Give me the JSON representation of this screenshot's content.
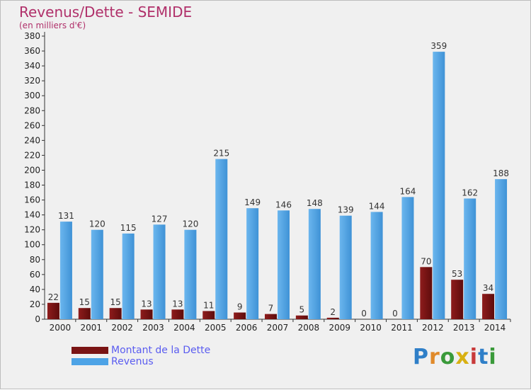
{
  "chart_data": {
    "type": "bar",
    "title": "Revenus/Dette - SEMIDE",
    "subtitle": "(en milliers d'€)",
    "categories": [
      "2000",
      "2001",
      "2002",
      "2003",
      "2004",
      "2005",
      "2006",
      "2007",
      "2008",
      "2009",
      "2010",
      "2011",
      "2012",
      "2013",
      "2014"
    ],
    "series": [
      {
        "name": "Montant de la Dette",
        "color": "#7a1414",
        "values": [
          22,
          15,
          15,
          13,
          13,
          11,
          9,
          7,
          5,
          2,
          0,
          0,
          70,
          53,
          34
        ]
      },
      {
        "name": "Revenus",
        "color": "#4da3e6",
        "values": [
          131,
          120,
          115,
          127,
          120,
          215,
          149,
          146,
          148,
          139,
          144,
          164,
          359,
          162,
          188
        ]
      }
    ],
    "ylim": [
      0,
      380
    ],
    "yticks": [
      0,
      20,
      40,
      60,
      80,
      100,
      120,
      140,
      160,
      180,
      200,
      220,
      240,
      260,
      280,
      300,
      320,
      340,
      360,
      380
    ],
    "grid": false,
    "legend": "bottom-left"
  },
  "brand": {
    "letters": [
      "P",
      "r",
      "o",
      "x",
      "i",
      "t",
      "i"
    ],
    "colors": [
      "#2f7fc8",
      "#e08a2a",
      "#3a9a3a",
      "#d8b012",
      "#c83a3a",
      "#2f7fc8",
      "#3a9a3a"
    ]
  }
}
